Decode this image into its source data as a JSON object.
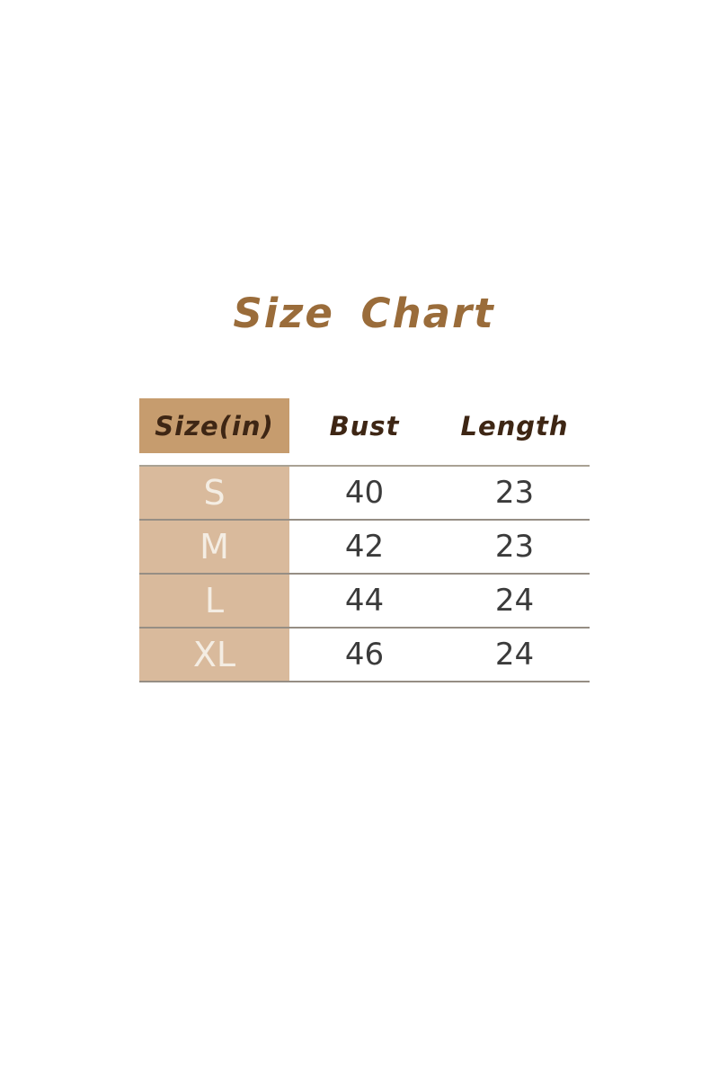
{
  "title": "Size Chart",
  "chart_data": {
    "type": "table",
    "title": "Size Chart",
    "columns": [
      "Size(in)",
      "Bust",
      "Length"
    ],
    "rows": [
      [
        "S",
        "40",
        "23"
      ],
      [
        "M",
        "42",
        "23"
      ],
      [
        "L",
        "44",
        "24"
      ],
      [
        "XL",
        "46",
        "24"
      ]
    ],
    "layout": {
      "header_size_cell_highlighted": true,
      "label_column_highlighted": true,
      "grid": "horizontal-lines-only",
      "units": "inches"
    }
  },
  "colors": {
    "background": "#ffffff",
    "title_text": "#9a6c3a",
    "header_cell_bg": "#c69c6e",
    "header_text": "#3e2614",
    "row_label_bg": "#d9ba9c",
    "row_label_text": "#f4ede3",
    "value_text": "#3b3b3b",
    "header_rule": "#a9a294",
    "row_rule": "#968e84"
  }
}
